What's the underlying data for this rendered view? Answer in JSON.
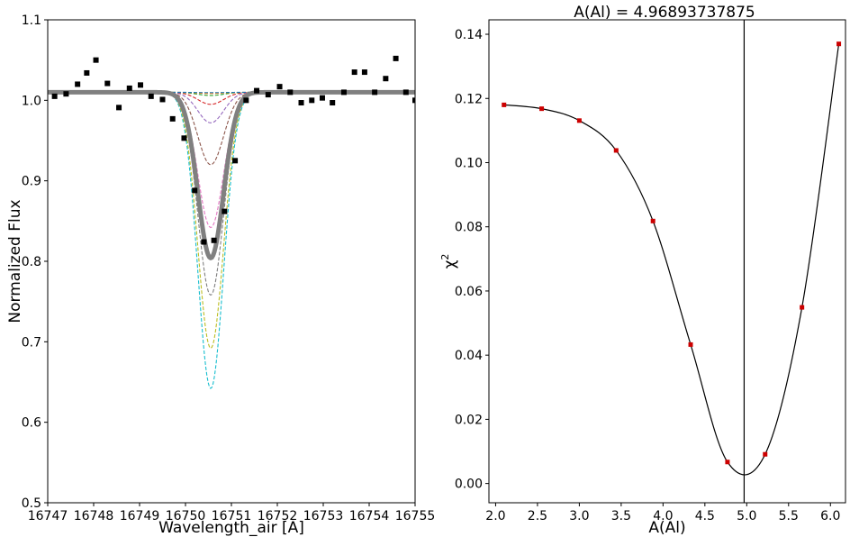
{
  "chart_data": [
    {
      "type": "line",
      "title": "",
      "xlabel": "Wavelength_air [A]",
      "ylabel": "Normalized Flux",
      "xlim": [
        16747,
        16755
      ],
      "ylim": [
        0.5,
        1.1
      ],
      "xticks": [
        "16747",
        "16748",
        "16749",
        "16750",
        "16751",
        "16752",
        "16753",
        "16754",
        "16755"
      ],
      "yticks": [
        "0.5",
        "0.6",
        "0.7",
        "0.8",
        "0.9",
        "1.0",
        "1.1"
      ],
      "grid": false,
      "observed": {
        "marker": "square",
        "color": "#000000",
        "x": [
          16747.15,
          16747.4,
          16747.65,
          16747.85,
          16748.05,
          16748.3,
          16748.55,
          16748.78,
          16749.02,
          16749.25,
          16749.5,
          16749.72,
          16749.97,
          16750.2,
          16750.4,
          16750.62,
          16750.85,
          16751.08,
          16751.32,
          16751.55,
          16751.8,
          16752.05,
          16752.28,
          16752.52,
          16752.75,
          16752.98,
          16753.2,
          16753.45,
          16753.68,
          16753.9,
          16754.12,
          16754.36,
          16754.58,
          16754.8,
          16755.0
        ],
        "y": [
          1.005,
          1.008,
          1.02,
          1.034,
          1.05,
          1.021,
          0.991,
          1.015,
          1.019,
          1.005,
          1.001,
          0.977,
          0.953,
          0.888,
          0.824,
          0.826,
          0.862,
          0.925,
          1.0,
          1.012,
          1.007,
          1.017,
          1.01,
          0.997,
          1.0,
          1.003,
          0.997,
          1.01,
          1.035,
          1.035,
          1.01,
          1.027,
          1.052,
          1.01,
          1.0
        ]
      },
      "synthetic": {
        "center": 16750.55,
        "sigma": 0.28,
        "continuum": 1.01,
        "best_depth": 0.206,
        "series": [
          {
            "color": "#17becf",
            "depth": 0.368
          },
          {
            "color": "#bcbd22",
            "depth": 0.318
          },
          {
            "color": "#7f7f7f",
            "depth": 0.252
          },
          {
            "color": "#e377c2",
            "depth": 0.168
          },
          {
            "color": "#8c564b",
            "depth": 0.09
          },
          {
            "color": "#9467bd",
            "depth": 0.038
          },
          {
            "color": "#d62728",
            "depth": 0.015
          },
          {
            "color": "#2ca02c",
            "depth": 0.004
          },
          {
            "color": "#ff7f0e",
            "depth": 0.0015
          },
          {
            "color": "#1f77b4",
            "depth": 0.0005
          }
        ]
      }
    },
    {
      "type": "scatter",
      "title": "A(Al) = 4.96893737875",
      "xlabel": "A(Al)",
      "ylabel_base": "χ",
      "ylabel_sup": "2",
      "xlim": [
        1.92,
        6.18
      ],
      "ylim": [
        -0.006,
        0.1445
      ],
      "xticks": [
        "2.0",
        "2.5",
        "3.0",
        "3.5",
        "4.0",
        "4.5",
        "5.0",
        "5.5",
        "6.0"
      ],
      "yticks": [
        "0.00",
        "0.02",
        "0.04",
        "0.06",
        "0.08",
        "0.10",
        "0.12",
        "0.14"
      ],
      "grid": false,
      "vline": 4.96893737875,
      "points": {
        "color": "#cc0000",
        "x": [
          2.1,
          2.55,
          3.0,
          3.44,
          3.88,
          4.33,
          4.77,
          5.22,
          5.66,
          6.1
        ],
        "y": [
          0.118,
          0.1168,
          0.1131,
          0.1038,
          0.0818,
          0.0433,
          0.0067,
          0.0091,
          0.0549,
          0.137
        ]
      }
    }
  ]
}
